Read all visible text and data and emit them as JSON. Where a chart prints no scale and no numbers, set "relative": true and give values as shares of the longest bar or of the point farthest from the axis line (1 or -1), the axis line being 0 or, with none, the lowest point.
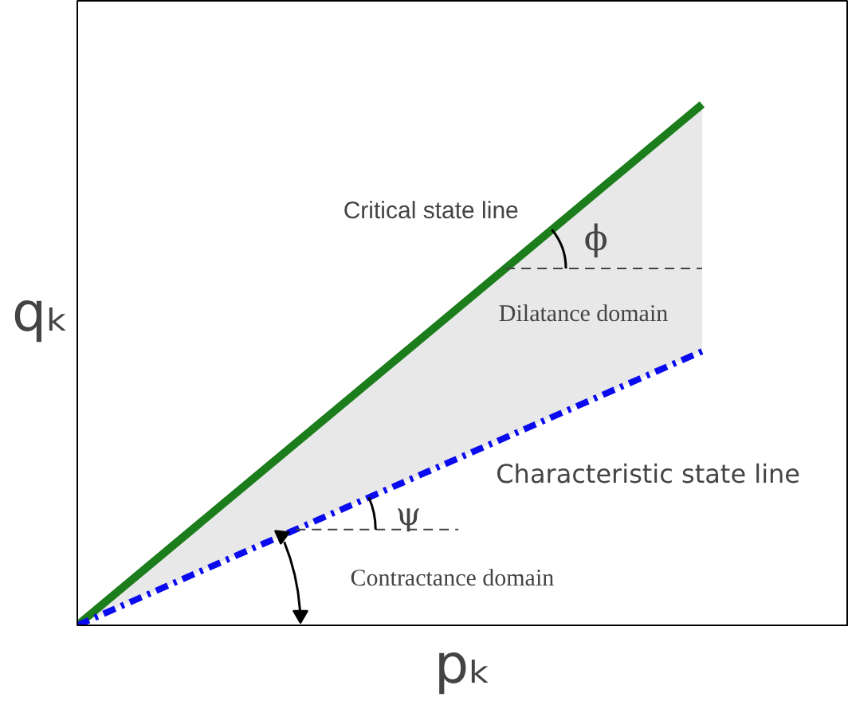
{
  "chart_data": {
    "type": "line",
    "relative": true,
    "xlabel": "pₖ",
    "ylabel": "qₖ",
    "categories": [
      null,
      null
    ],
    "series": [
      {
        "color": "#1b7d1b",
        "values": [
          0,
          1
        ],
        "line_style": "solid",
        "lower": [
          0,
          0.526
        ],
        "upper": [
          0,
          1
        ]
      },
      {
        "color": "#0a0aee",
        "values": [
          0,
          0.526
        ],
        "line_style": "dashdot"
      }
    ],
    "annotations": [
      "Critical state line",
      "ϕ",
      "Dilatance domain",
      "Characteristic state line",
      "ψ",
      "Contractance domain"
    ],
    "ref_lines": [
      {
        "axis": "y",
        "value": 0.685,
        "line_style": "dashed",
        "color": "#444444"
      },
      {
        "axis": "y",
        "value": 0.184,
        "line_style": "dashed",
        "color": "#444444"
      }
    ],
    "marker": "none"
  }
}
